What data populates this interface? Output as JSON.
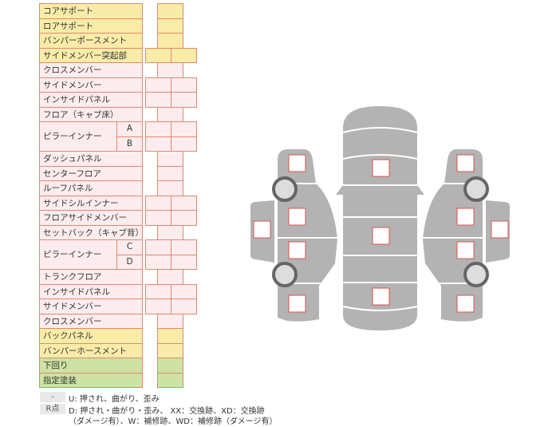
{
  "rows": [
    {
      "label": "コアサポート",
      "color": "yellow",
      "cells": 1
    },
    {
      "label": "ロアサポート",
      "color": "yellow",
      "cells": 1
    },
    {
      "label": "バンパーポースメント",
      "color": "yellow",
      "cells": 1
    },
    {
      "label": "サイドメンバー突起部",
      "color": "yellow",
      "cells": 2
    },
    {
      "label": "クロスメンバー",
      "color": "pink",
      "cells": 1
    },
    {
      "label": "サイドメンバー",
      "color": "pink",
      "cells": 2
    },
    {
      "label": "インサイドパネル",
      "color": "pink",
      "cells": 2
    },
    {
      "label": "フロア（キャブ床）",
      "color": "pink",
      "cells": 1
    },
    {
      "label": "ピラーインナー",
      "color": "pink",
      "cells": 2,
      "subs": [
        "A",
        "B"
      ]
    },
    {
      "label": "ダッシュパネル",
      "color": "pink",
      "cells": 1
    },
    {
      "label": "センターフロア",
      "color": "pink",
      "cells": 1
    },
    {
      "label": "ルーフパネル",
      "color": "pink",
      "cells": 1
    },
    {
      "label": "サイドシルインナー",
      "color": "pink",
      "cells": 2
    },
    {
      "label": "フロアサイドメンバー",
      "color": "pink",
      "cells": 2
    },
    {
      "label": "セットバック（キャブ背）",
      "color": "pink",
      "cells": 1
    },
    {
      "label": "ピラーインナー",
      "color": "pink",
      "cells": 2,
      "subs": [
        "C",
        "D"
      ]
    },
    {
      "label": "トランクフロア",
      "color": "pink",
      "cells": 1
    },
    {
      "label": "インサイドパネル",
      "color": "pink",
      "cells": 2
    },
    {
      "label": "サイドメンバー",
      "color": "pink",
      "cells": 2
    },
    {
      "label": "クロスメンバー",
      "color": "pink",
      "cells": 1
    },
    {
      "label": "バックパネル",
      "color": "yellow",
      "cells": 1
    },
    {
      "label": "バンパーホースメント",
      "color": "yellow",
      "cells": 1
    },
    {
      "label": "下回り",
      "color": "green",
      "cells": 1
    },
    {
      "label": "指定塗装",
      "color": "green",
      "cells": 1
    }
  ],
  "legend": {
    "key1": "-",
    "text1": "U: 押され、曲がり、歪み",
    "key2": "R点",
    "text2": "D: 押され・曲がり・歪み、 XX：交換跡、XD：交換跡",
    "text3": "（ダメージ有）、W：補修跡、WD：補修跡（ダメージ有）"
  },
  "colors": {
    "yellow": "#f9eca8",
    "pink": "#fcecee",
    "green": "#cde2a3",
    "border": "#e0896f",
    "body": "#b3b3b3",
    "marker": "#d9534f"
  }
}
